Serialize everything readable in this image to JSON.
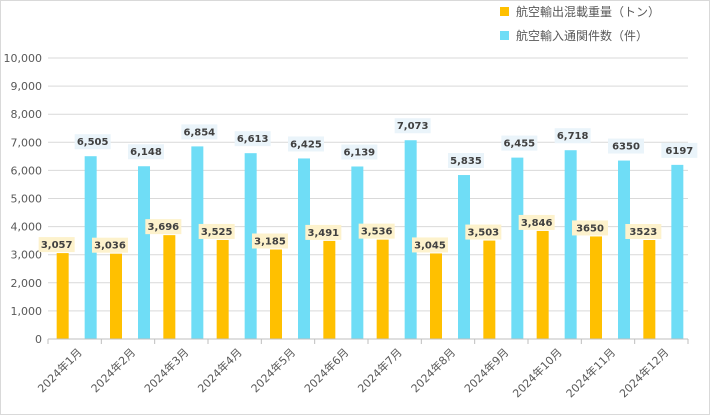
{
  "chart_data": {
    "type": "bar",
    "categories": [
      "2024年1月",
      "2024年2月",
      "2024年3月",
      "2024年4月",
      "2024年5月",
      "2024年6月",
      "2024年7月",
      "2024年8月",
      "2024年9月",
      "2024年10月",
      "2024年11月",
      "2024年12月"
    ],
    "series": [
      {
        "name": "航空輸出混載重量（トン）",
        "color": "#FFC000",
        "label_bg": "#FDF2CC",
        "values": [
          3057,
          3036,
          3696,
          3525,
          3185,
          3491,
          3536,
          3045,
          3503,
          3846,
          3650,
          3523
        ],
        "labels": [
          "3,057",
          "3,036",
          "3,696",
          "3,525",
          "3,185",
          "3,491",
          "3,536",
          "3,045",
          "3,503",
          "3,846",
          "3650",
          "3523"
        ]
      },
      {
        "name": "航空輸入通関件数（件）",
        "color": "#6FDDF6",
        "label_bg": "#EAF4FA",
        "values": [
          6505,
          6148,
          6854,
          6613,
          6425,
          6139,
          7073,
          5835,
          6455,
          6718,
          6350,
          6197
        ],
        "labels": [
          "6,505",
          "6,148",
          "6,854",
          "6,613",
          "6,425",
          "6,139",
          "7,073",
          "5,835",
          "6,455",
          "6,718",
          "6350",
          "6197"
        ]
      }
    ],
    "ylim": [
      0,
      10000
    ],
    "yticks": [
      0,
      1000,
      2000,
      3000,
      4000,
      5000,
      6000,
      7000,
      8000,
      9000,
      10000
    ],
    "ytick_labels": [
      "0",
      "1,000",
      "2,000",
      "3,000",
      "4,000",
      "5,000",
      "6,000",
      "7,000",
      "8,000",
      "9,000",
      "10,000"
    ],
    "grid": true,
    "legend_position": "top-right",
    "title": "",
    "xlabel": "",
    "ylabel": ""
  }
}
